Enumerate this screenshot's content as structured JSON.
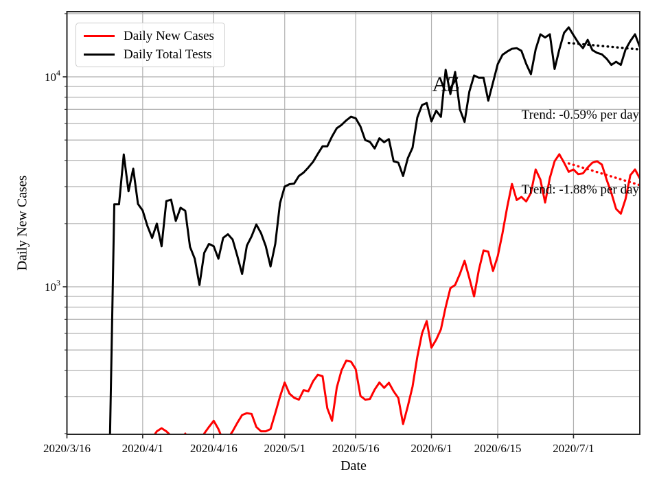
{
  "figure": {
    "background": "#ffffff",
    "frame_color": "#262626",
    "grid_color": "#b0b0b0"
  },
  "chart_data": {
    "type": "line",
    "title": "",
    "xlabel": "Date",
    "ylabel": "Daily New Cases",
    "yscale": "log",
    "ylim": [
      200,
      20000
    ],
    "xlim": [
      "2020/3/16",
      "2020/7/15"
    ],
    "grid": true,
    "legend_position": "upper left",
    "x_tick_labels": [
      "2020/3/16",
      "2020/4/1",
      "2020/4/16",
      "2020/5/1",
      "2020/5/16",
      "2020/6/1",
      "2020/6/15",
      "2020/7/1"
    ],
    "y_tick_labels": [
      "10^3",
      "10^4"
    ],
    "state_label": {
      "text": "AZ",
      "date": "2020/6/4",
      "value": 9200
    },
    "series": [
      {
        "name": "Daily New Cases",
        "color": "#ff0000",
        "dates": [
          "2020/4/2",
          "2020/4/3",
          "2020/4/4",
          "2020/4/5",
          "2020/4/6",
          "2020/4/7",
          "2020/4/8",
          "2020/4/9",
          "2020/4/10",
          "2020/4/11",
          "2020/4/12",
          "2020/4/13",
          "2020/4/14",
          "2020/4/15",
          "2020/4/16",
          "2020/4/17",
          "2020/4/18",
          "2020/4/19",
          "2020/4/20",
          "2020/4/21",
          "2020/4/22",
          "2020/4/23",
          "2020/4/24",
          "2020/4/25",
          "2020/4/26",
          "2020/4/27",
          "2020/4/28",
          "2020/4/29",
          "2020/4/30",
          "2020/5/1",
          "2020/5/2",
          "2020/5/3",
          "2020/5/4",
          "2020/5/5",
          "2020/5/6",
          "2020/5/7",
          "2020/5/8",
          "2020/5/9",
          "2020/5/10",
          "2020/5/11",
          "2020/5/12",
          "2020/5/13",
          "2020/5/14",
          "2020/5/15",
          "2020/5/16",
          "2020/5/17",
          "2020/5/18",
          "2020/5/19",
          "2020/5/20",
          "2020/5/21",
          "2020/5/22",
          "2020/5/23",
          "2020/5/24",
          "2020/5/25",
          "2020/5/26",
          "2020/5/27",
          "2020/5/28",
          "2020/5/29",
          "2020/5/30",
          "2020/5/31",
          "2020/6/1",
          "2020/6/2",
          "2020/6/3",
          "2020/6/4",
          "2020/6/5",
          "2020/6/6",
          "2020/6/7",
          "2020/6/8",
          "2020/6/9",
          "2020/6/10",
          "2020/6/11",
          "2020/6/12",
          "2020/6/13",
          "2020/6/14",
          "2020/6/15",
          "2020/6/16",
          "2020/6/17",
          "2020/6/18",
          "2020/6/19",
          "2020/6/20",
          "2020/6/21",
          "2020/6/22",
          "2020/6/23",
          "2020/6/24",
          "2020/6/25",
          "2020/6/26",
          "2020/6/27",
          "2020/6/28",
          "2020/6/29",
          "2020/6/30",
          "2020/7/1",
          "2020/7/2",
          "2020/7/3",
          "2020/7/4",
          "2020/7/5",
          "2020/7/6",
          "2020/7/7",
          "2020/7/8",
          "2020/7/9",
          "2020/7/10",
          "2020/7/11",
          "2020/7/12",
          "2020/7/13",
          "2020/7/14",
          "2020/7/15"
        ],
        "values": [
          150,
          190,
          205,
          212,
          205,
          195,
          170,
          180,
          200,
          175,
          165,
          175,
          200,
          215,
          230,
          210,
          185,
          190,
          205,
          225,
          245,
          250,
          248,
          215,
          205,
          205,
          210,
          250,
          300,
          350,
          310,
          296,
          290,
          322,
          318,
          355,
          381,
          375,
          264,
          230,
          331,
          400,
          445,
          440,
          405,
          302,
          290,
          292,
          324,
          350,
          330,
          349,
          318,
          295,
          222,
          270,
          335,
          463,
          600,
          687,
          513,
          560,
          627,
          800,
          985,
          1020,
          1150,
          1330,
          1100,
          900,
          1200,
          1490,
          1470,
          1190,
          1400,
          1800,
          2400,
          3090,
          2590,
          2680,
          2550,
          2800,
          3620,
          3240,
          2520,
          3300,
          3960,
          4280,
          3900,
          3530,
          3620,
          3440,
          3470,
          3700,
          3900,
          3960,
          3820,
          3240,
          2800,
          2350,
          2230,
          2620,
          3400,
          3620,
          3280
        ]
      },
      {
        "name": "Daily Total Tests",
        "color": "#000000",
        "dates": [
          "2020/3/25",
          "2020/3/26",
          "2020/3/27",
          "2020/3/28",
          "2020/3/29",
          "2020/3/30",
          "2020/3/31",
          "2020/4/1",
          "2020/4/2",
          "2020/4/3",
          "2020/4/4",
          "2020/4/5",
          "2020/4/6",
          "2020/4/7",
          "2020/4/8",
          "2020/4/9",
          "2020/4/10",
          "2020/4/11",
          "2020/4/12",
          "2020/4/13",
          "2020/4/14",
          "2020/4/15",
          "2020/4/16",
          "2020/4/17",
          "2020/4/18",
          "2020/4/19",
          "2020/4/20",
          "2020/4/21",
          "2020/4/22",
          "2020/4/23",
          "2020/4/24",
          "2020/4/25",
          "2020/4/26",
          "2020/4/27",
          "2020/4/28",
          "2020/4/29",
          "2020/4/30",
          "2020/5/1",
          "2020/5/2",
          "2020/5/3",
          "2020/5/4",
          "2020/5/5",
          "2020/5/6",
          "2020/5/7",
          "2020/5/8",
          "2020/5/9",
          "2020/5/10",
          "2020/5/11",
          "2020/5/12",
          "2020/5/13",
          "2020/5/14",
          "2020/5/15",
          "2020/5/16",
          "2020/5/17",
          "2020/5/18",
          "2020/5/19",
          "2020/5/20",
          "2020/5/21",
          "2020/5/22",
          "2020/5/23",
          "2020/5/24",
          "2020/5/25",
          "2020/5/26",
          "2020/5/27",
          "2020/5/28",
          "2020/5/29",
          "2020/5/30",
          "2020/5/31",
          "2020/6/1",
          "2020/6/2",
          "2020/6/3",
          "2020/6/4",
          "2020/6/5",
          "2020/6/6",
          "2020/6/7",
          "2020/6/8",
          "2020/6/9",
          "2020/6/10",
          "2020/6/11",
          "2020/6/12",
          "2020/6/13",
          "2020/6/14",
          "2020/6/15",
          "2020/6/16",
          "2020/6/17",
          "2020/6/18",
          "2020/6/19",
          "2020/6/20",
          "2020/6/21",
          "2020/6/22",
          "2020/6/23",
          "2020/6/24",
          "2020/6/25",
          "2020/6/26",
          "2020/6/27",
          "2020/6/28",
          "2020/6/29",
          "2020/6/30",
          "2020/7/1",
          "2020/7/2",
          "2020/7/3",
          "2020/7/4",
          "2020/7/5",
          "2020/7/6",
          "2020/7/7",
          "2020/7/8",
          "2020/7/9",
          "2020/7/10",
          "2020/7/11",
          "2020/7/12",
          "2020/7/13",
          "2020/7/14",
          "2020/7/15"
        ],
        "values": [
          150,
          2470,
          2470,
          4270,
          2850,
          3650,
          2480,
          2310,
          1950,
          1710,
          2000,
          1560,
          2560,
          2600,
          2060,
          2380,
          2300,
          1550,
          1360,
          1020,
          1450,
          1600,
          1560,
          1360,
          1710,
          1780,
          1680,
          1400,
          1150,
          1570,
          1740,
          1980,
          1800,
          1560,
          1250,
          1600,
          2500,
          3000,
          3080,
          3100,
          3370,
          3500,
          3700,
          3940,
          4300,
          4670,
          4670,
          5200,
          5690,
          5900,
          6200,
          6460,
          6350,
          5800,
          5000,
          4900,
          4560,
          5100,
          4880,
          5050,
          3960,
          3900,
          3370,
          4100,
          4600,
          6400,
          7340,
          7510,
          6130,
          6900,
          6450,
          10800,
          8280,
          10550,
          7000,
          6100,
          8500,
          10150,
          9900,
          9900,
          7700,
          9400,
          11500,
          12730,
          13200,
          13600,
          13700,
          13300,
          11540,
          10300,
          13500,
          15950,
          15400,
          15950,
          10900,
          13500,
          16200,
          17200,
          15800,
          14560,
          13700,
          15000,
          13400,
          13000,
          12800,
          12200,
          11400,
          11800,
          11400,
          13500,
          14800,
          15950,
          13900
        ]
      }
    ],
    "trend_lines": [
      {
        "series": "Daily Total Tests",
        "color": "#000000",
        "text": "Trend: -0.59% per day",
        "rate_per_day": -0.59,
        "start": {
          "date": "2020/6/30",
          "value": 14500
        },
        "end": {
          "date": "2020/7/15",
          "value": 13500
        }
      },
      {
        "series": "Daily New Cases",
        "color": "#ff0000",
        "text": "Trend: -1.88% per day",
        "rate_per_day": -1.88,
        "start": {
          "date": "2020/6/30",
          "value": 3870
        },
        "end": {
          "date": "2020/7/15",
          "value": 3050
        }
      }
    ]
  }
}
